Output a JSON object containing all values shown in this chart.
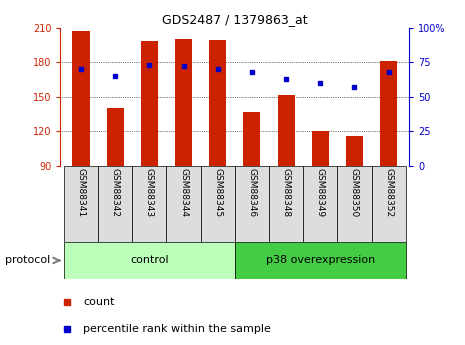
{
  "title": "GDS2487 / 1379863_at",
  "samples": [
    "GSM88341",
    "GSM88342",
    "GSM88343",
    "GSM88344",
    "GSM88345",
    "GSM88346",
    "GSM88348",
    "GSM88349",
    "GSM88350",
    "GSM88352"
  ],
  "counts": [
    207,
    140,
    198,
    200,
    199,
    137,
    151,
    120,
    116,
    181
  ],
  "percentile_ranks": [
    70,
    65,
    73,
    72,
    70,
    68,
    63,
    60,
    57,
    68
  ],
  "ymin": 90,
  "ymax": 210,
  "yticks": [
    90,
    120,
    150,
    180,
    210
  ],
  "yright_min": 0,
  "yright_max": 100,
  "yright_ticks": [
    0,
    25,
    50,
    75,
    100
  ],
  "bar_color": "#cc2200",
  "dot_color": "#0000cc",
  "group_labels": [
    "control",
    "p38 overexpression"
  ],
  "group_ranges": [
    [
      0,
      5
    ],
    [
      5,
      10
    ]
  ],
  "group_colors": [
    "#bbffbb",
    "#44cc44"
  ],
  "sample_bg_color": "#dddddd",
  "background_color": "#ffffff"
}
